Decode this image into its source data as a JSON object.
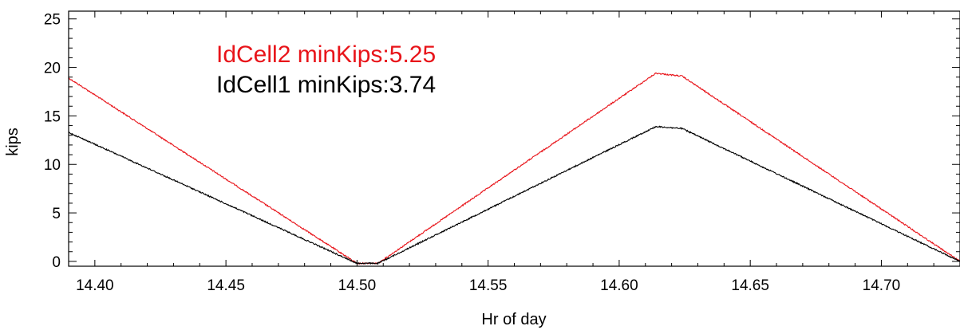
{
  "chart_data": {
    "type": "line",
    "title": "",
    "xlabel": "Hr of day",
    "ylabel": "kips",
    "xlim": [
      14.39,
      14.73
    ],
    "ylim": [
      -0.5,
      25.8
    ],
    "xticks": [
      14.4,
      14.45,
      14.5,
      14.55,
      14.6,
      14.65,
      14.7
    ],
    "xtick_labels": [
      "14.40",
      "14.45",
      "14.50",
      "14.55",
      "14.60",
      "14.65",
      "14.70"
    ],
    "yticks": [
      0,
      5,
      10,
      15,
      20,
      25
    ],
    "ytick_labels": [
      "0",
      "5",
      "10",
      "15",
      "20",
      "25"
    ],
    "grid": false,
    "legend_position": "top-left",
    "series": [
      {
        "name": "IdCell2 minKips:5.25",
        "color": "#e8141a",
        "x": [
          14.39,
          14.5,
          14.508,
          14.614,
          14.624,
          14.73
        ],
        "y": [
          18.9,
          -0.2,
          -0.2,
          19.4,
          19.1,
          0.0
        ]
      },
      {
        "name": "IdCell1 minKips:3.74",
        "color": "#000000",
        "x": [
          14.39,
          14.5,
          14.508,
          14.614,
          14.624,
          14.73
        ],
        "y": [
          13.3,
          -0.2,
          -0.2,
          13.9,
          13.7,
          0.0
        ]
      }
    ]
  }
}
